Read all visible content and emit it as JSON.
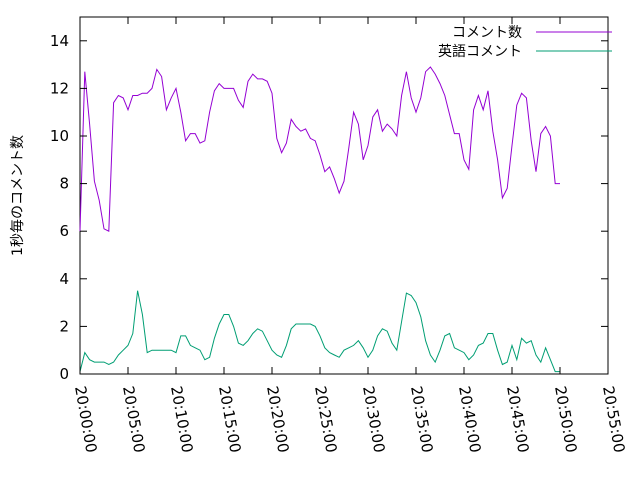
{
  "chart_data": {
    "type": "line",
    "title": "",
    "xlabel": "",
    "ylabel": "1秒毎のコメント数",
    "xlim": [
      "20:00:00",
      "20:55:00"
    ],
    "ylim": [
      0,
      15
    ],
    "grid": false,
    "legend_position": "top-right",
    "x_ticks": [
      "20:00:00",
      "20:05:00",
      "20:10:00",
      "20:15:00",
      "20:20:00",
      "20:25:00",
      "20:30:00",
      "20:35:00",
      "20:40:00",
      "20:45:00",
      "20:50:00",
      "20:55:00"
    ],
    "y_ticks": [
      0,
      2,
      4,
      6,
      8,
      10,
      12,
      14
    ],
    "x": [
      "20:00:00",
      "20:00:30",
      "20:01:00",
      "20:01:30",
      "20:02:00",
      "20:02:30",
      "20:03:00",
      "20:03:30",
      "20:04:00",
      "20:04:30",
      "20:05:00",
      "20:05:30",
      "20:06:00",
      "20:06:30",
      "20:07:00",
      "20:07:30",
      "20:08:00",
      "20:08:30",
      "20:09:00",
      "20:09:30",
      "20:10:00",
      "20:10:30",
      "20:11:00",
      "20:11:30",
      "20:12:00",
      "20:12:30",
      "20:13:00",
      "20:13:30",
      "20:14:00",
      "20:14:30",
      "20:15:00",
      "20:15:30",
      "20:16:00",
      "20:16:30",
      "20:17:00",
      "20:17:30",
      "20:18:00",
      "20:18:30",
      "20:19:00",
      "20:19:30",
      "20:20:00",
      "20:20:30",
      "20:21:00",
      "20:21:30",
      "20:22:00",
      "20:22:30",
      "20:23:00",
      "20:23:30",
      "20:24:00",
      "20:24:30",
      "20:25:00",
      "20:25:30",
      "20:26:00",
      "20:26:30",
      "20:27:00",
      "20:27:30",
      "20:28:00",
      "20:28:30",
      "20:29:00",
      "20:29:30",
      "20:30:00",
      "20:30:30",
      "20:31:00",
      "20:31:30",
      "20:32:00",
      "20:32:30",
      "20:33:00",
      "20:33:30",
      "20:34:00",
      "20:34:30",
      "20:35:00",
      "20:35:30",
      "20:36:00",
      "20:36:30",
      "20:37:00",
      "20:37:30",
      "20:38:00",
      "20:38:30",
      "20:39:00",
      "20:39:30",
      "20:40:00",
      "20:40:30",
      "20:41:00",
      "20:41:30",
      "20:42:00",
      "20:42:30",
      "20:43:00",
      "20:43:30",
      "20:44:00",
      "20:44:30",
      "20:45:00",
      "20:45:30",
      "20:46:00",
      "20:46:30",
      "20:47:00",
      "20:47:30",
      "20:48:00",
      "20:48:30",
      "20:49:00",
      "20:49:30",
      "20:50:00"
    ],
    "series": [
      {
        "name": "コメント数",
        "color": "#9400d3",
        "values": [
          6.0,
          12.7,
          10.5,
          8.1,
          7.3,
          6.1,
          6.0,
          11.4,
          11.7,
          11.6,
          11.1,
          11.7,
          11.7,
          11.8,
          11.8,
          12.0,
          12.8,
          12.5,
          11.1,
          11.6,
          12.0,
          11.0,
          9.8,
          10.1,
          10.1,
          9.7,
          9.8,
          11.0,
          11.9,
          12.2,
          12.0,
          12.0,
          12.0,
          11.5,
          11.2,
          12.3,
          12.6,
          12.4,
          12.4,
          12.3,
          11.8,
          9.9,
          9.3,
          9.7,
          10.7,
          10.4,
          10.2,
          10.3,
          9.9,
          9.8,
          9.2,
          8.5,
          8.7,
          8.2,
          7.6,
          8.1,
          9.5,
          11.0,
          10.5,
          9.0,
          9.6,
          10.8,
          11.1,
          10.2,
          10.5,
          10.3,
          10.0,
          11.7,
          12.7,
          11.6,
          11.0,
          11.6,
          12.7,
          12.9,
          12.6,
          12.2,
          11.7,
          10.9,
          10.1,
          10.1,
          9.0,
          8.6,
          11.1,
          11.7,
          11.1,
          11.9,
          10.2,
          9.0,
          7.4,
          7.8,
          9.6,
          11.3,
          11.8,
          11.6,
          9.8,
          8.5,
          10.1,
          10.4,
          10.0,
          8.0,
          8.0
        ]
      },
      {
        "name": "英語コメント",
        "color": "#009e73",
        "values": [
          0.1,
          0.9,
          0.6,
          0.5,
          0.5,
          0.5,
          0.4,
          0.5,
          0.8,
          1.0,
          1.2,
          1.7,
          3.5,
          2.5,
          0.9,
          1.0,
          1.0,
          1.0,
          1.0,
          1.0,
          0.9,
          1.6,
          1.6,
          1.2,
          1.1,
          1.0,
          0.6,
          0.7,
          1.5,
          2.1,
          2.5,
          2.5,
          2.0,
          1.3,
          1.2,
          1.4,
          1.7,
          1.9,
          1.8,
          1.4,
          1.0,
          0.8,
          0.7,
          1.2,
          1.9,
          2.1,
          2.1,
          2.1,
          2.1,
          2.0,
          1.6,
          1.1,
          0.9,
          0.8,
          0.7,
          1.0,
          1.1,
          1.2,
          1.4,
          1.1,
          0.7,
          1.0,
          1.6,
          1.9,
          1.8,
          1.3,
          1.0,
          2.2,
          3.4,
          3.3,
          3.0,
          2.4,
          1.4,
          0.8,
          0.5,
          1.0,
          1.6,
          1.7,
          1.1,
          1.0,
          0.9,
          0.6,
          0.8,
          1.2,
          1.3,
          1.7,
          1.7,
          1.0,
          0.4,
          0.5,
          1.2,
          0.6,
          1.5,
          1.3,
          1.4,
          0.8,
          0.5,
          1.1,
          0.6,
          0.1,
          0.1
        ]
      }
    ]
  }
}
